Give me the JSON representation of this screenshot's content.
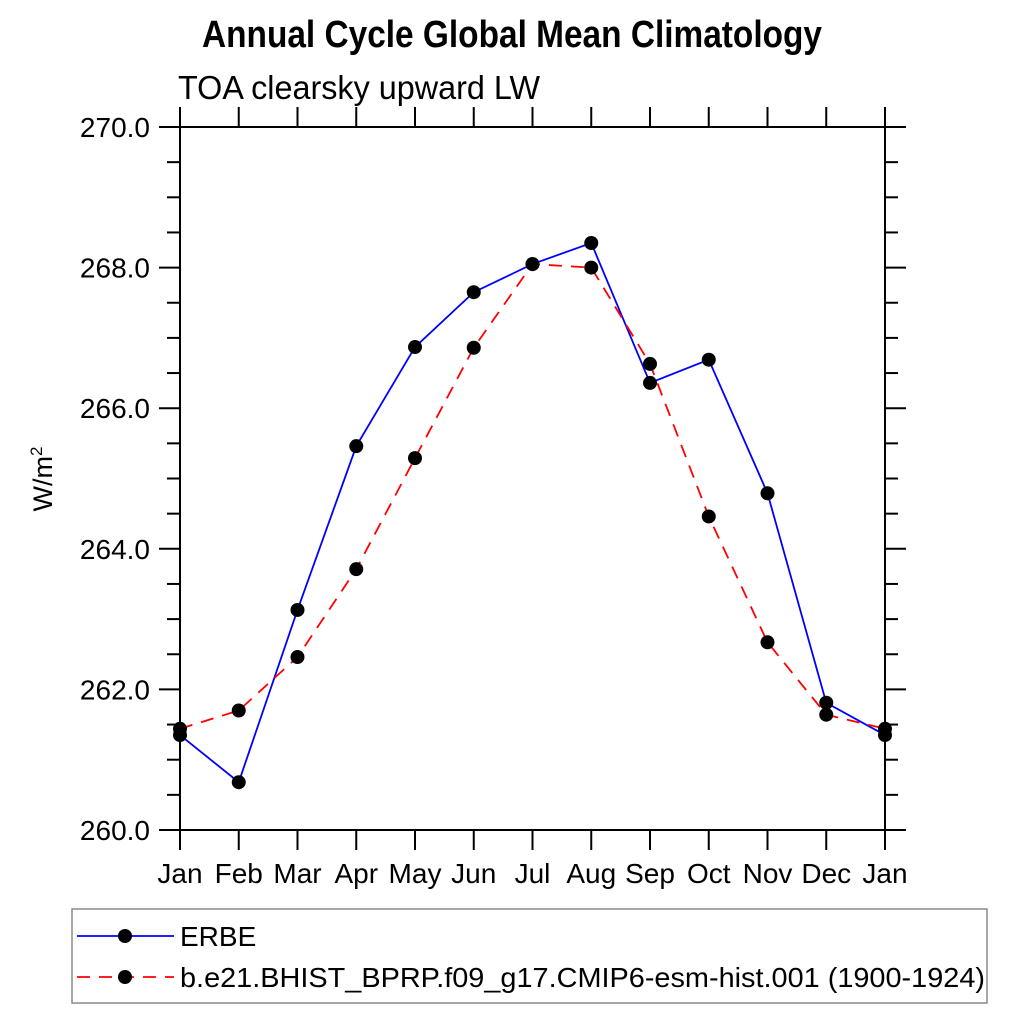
{
  "chart_data": {
    "type": "line",
    "title": "Annual Cycle Global Mean Climatology",
    "subtitle": "TOA clearsky upward LW",
    "ylabel": "W/m²",
    "ylabel_base": "W/m",
    "ylabel_sup": "2",
    "xlabel": "",
    "categories": [
      "Jan",
      "Feb",
      "Mar",
      "Apr",
      "May",
      "Jun",
      "Jul",
      "Aug",
      "Sep",
      "Oct",
      "Nov",
      "Dec",
      "Jan"
    ],
    "ylim": [
      260.0,
      270.0
    ],
    "ytick_major_step": 2.0,
    "ytick_minor_step": 0.5,
    "ytick_labels": [
      "260.0",
      "262.0",
      "264.0",
      "266.0",
      "268.0",
      "270.0"
    ],
    "grid": false,
    "legend_position": "bottom-left",
    "marker": "filled-circle",
    "marker_color": "#000000",
    "axis_color": "#000000",
    "legend_border_color": "#8a8a8a",
    "series": [
      {
        "name": "ERBE",
        "color": "#0000ff",
        "line_style": "solid",
        "values": [
          261.35,
          260.68,
          263.13,
          265.46,
          266.87,
          267.65,
          268.05,
          268.35,
          266.36,
          266.69,
          264.79,
          261.81,
          261.35
        ]
      },
      {
        "name": "b.e21.BHIST_BPRP.f09_g17.CMIP6-esm-hist.001 (1900-1924)",
        "color": "#ff0000",
        "line_style": "dashed",
        "values": [
          261.44,
          261.7,
          262.46,
          263.71,
          265.29,
          266.86,
          268.05,
          268.0,
          266.63,
          264.46,
          262.67,
          261.64,
          261.44
        ]
      }
    ]
  }
}
